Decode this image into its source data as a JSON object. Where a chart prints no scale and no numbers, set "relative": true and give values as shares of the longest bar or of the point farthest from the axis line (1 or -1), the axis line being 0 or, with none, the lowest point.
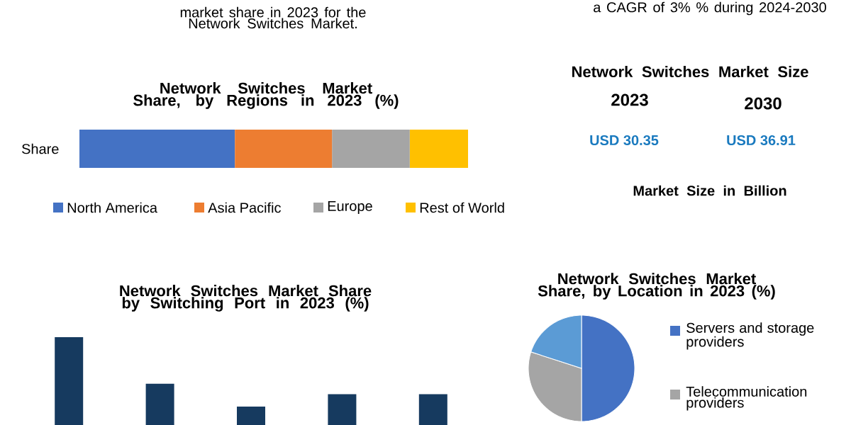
{
  "chart_data": [
    {
      "type": "other",
      "annotations": [
        "market share in 2023 for the Network Switches Market.",
        "a CAGR of 3% % during 2024-2030"
      ]
    },
    {
      "type": "bar",
      "title": "Network Switches Market Share, by Regions in 2023 (%)",
      "orientation": "horizontal",
      "stacked": true,
      "relative": true,
      "categories": [
        "Share"
      ],
      "legend": "bottom",
      "series": [
        {
          "name": "North America",
          "color": "#4472c4",
          "values": [
            0.4
          ]
        },
        {
          "name": "Asia Pacific",
          "color": "#ed7d31",
          "values": [
            0.25
          ]
        },
        {
          "name": "Europe",
          "color": "#a5a5a5",
          "values": [
            0.2
          ]
        },
        {
          "name": "Rest of World",
          "color": "#ffc000",
          "values": [
            0.15
          ]
        }
      ]
    },
    {
      "type": "other",
      "title": "Network Switches Market Size",
      "categories": [
        "2023",
        "2030"
      ],
      "value_labels": [
        "USD 30.35",
        "USD 36.91"
      ],
      "annotations": [
        "Market Size in Billion"
      ]
    },
    {
      "type": "bar",
      "title": "Network Switches Market Share by Switching Port  in 2023 (%)",
      "relative": true,
      "categories": [
        null,
        null,
        null,
        null,
        null
      ],
      "values": [
        1,
        0.47,
        0.21,
        0.35,
        0.35
      ],
      "color": "#163a5f"
    },
    {
      "type": "pie",
      "title": "Network Switches Market Share, by Location in 2023 (%)",
      "categories": [
        "Servers and storage providers",
        "Telecommunication providers",
        null
      ],
      "values": [
        50,
        30,
        20
      ],
      "colors": [
        "#4472c4",
        "#a5a5a5",
        "#5b9bd5"
      ],
      "legend": "right"
    }
  ]
}
